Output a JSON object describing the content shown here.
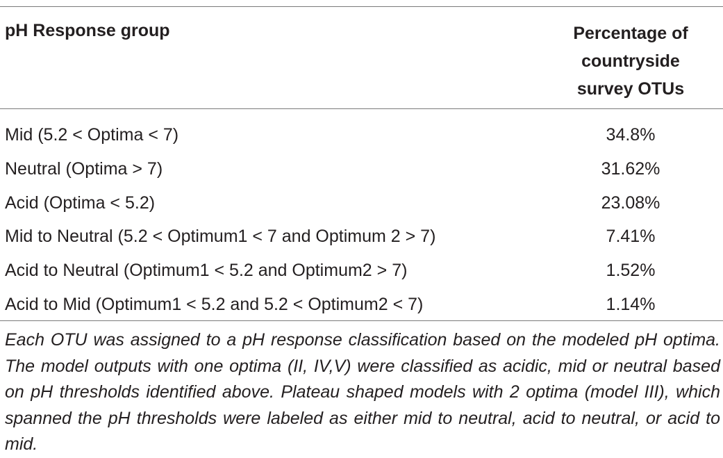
{
  "table": {
    "header": {
      "col1": "pH Response group",
      "col2_lines": [
        "Percentage of",
        "countryside",
        "survey OTUs"
      ]
    },
    "rows": [
      {
        "group": "Mid (5.2 < Optima < 7)",
        "percentage": "34.8%"
      },
      {
        "group": "Neutral (Optima > 7)",
        "percentage": "31.62%"
      },
      {
        "group": "Acid (Optima < 5.2)",
        "percentage": "23.08%"
      },
      {
        "group": "Mid to Neutral (5.2 < Optimum1 < 7 and Optimum 2 > 7)",
        "percentage": "7.41%"
      },
      {
        "group": "Acid to Neutral (Optimum1 < 5.2 and Optimum2 > 7)",
        "percentage": "1.52%"
      },
      {
        "group": "Acid to Mid (Optimum1 < 5.2 and 5.2 < Optimum2 < 7)",
        "percentage": "1.14%"
      }
    ],
    "footnote": "Each OTU was assigned to a pH response classification based on the modeled pH optima. The model outputs with one optima (II, IV,V) were classified as acidic, mid or neutral based on pH thresholds identified above. Plateau shaped models with 2 optima (model III), which spanned the pH thresholds were labeled as either mid to neutral, acid to neutral, or acid to mid."
  }
}
